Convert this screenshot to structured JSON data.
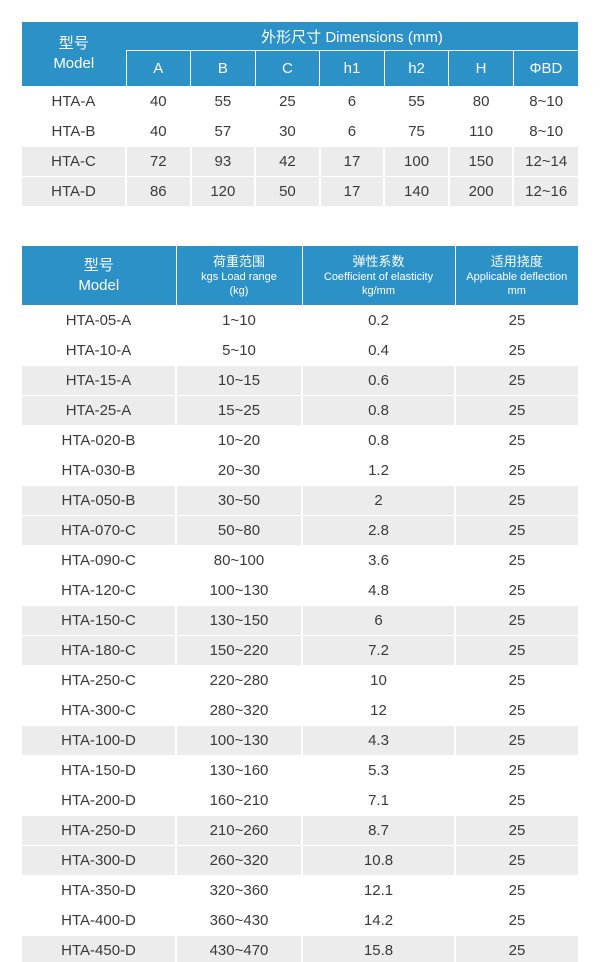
{
  "colors": {
    "header_bg": "#2C91C6",
    "header_text": "#FFFFFF",
    "stripe_bg": "#ECECED",
    "body_text": "#3A3A3A",
    "page_bg": "#FFFFFF"
  },
  "dimensions_table": {
    "model_header": {
      "zh": "型号",
      "en": "Model"
    },
    "group_header": "外形尺寸 Dimensions (mm)",
    "columns": [
      "A",
      "B",
      "C",
      "h1",
      "h2",
      "H",
      "ΦBD"
    ],
    "rows": [
      {
        "model": "HTA-A",
        "values": [
          "40",
          "55",
          "25",
          "6",
          "55",
          "80",
          "8~10"
        ],
        "shaded": false
      },
      {
        "model": "HTA-B",
        "values": [
          "40",
          "57",
          "30",
          "6",
          "75",
          "110",
          "8~10"
        ],
        "shaded": false
      },
      {
        "model": "HTA-C",
        "values": [
          "72",
          "93",
          "42",
          "17",
          "100",
          "150",
          "12~14"
        ],
        "shaded": true
      },
      {
        "model": "HTA-D",
        "values": [
          "86",
          "120",
          "50",
          "17",
          "140",
          "200",
          "12~16"
        ],
        "shaded": true
      }
    ]
  },
  "spec_table": {
    "headers": [
      {
        "lines": [
          "型号",
          "Model"
        ],
        "model_style": true
      },
      {
        "lines": [
          "荷重范围",
          "kgs Load range",
          "(kg)"
        ],
        "model_style": false
      },
      {
        "lines": [
          "弹性系数",
          "Coefficient of elasticity",
          "kg/mm"
        ],
        "model_style": false
      },
      {
        "lines": [
          "适用挠度",
          "Applicable deflection",
          "mm"
        ],
        "model_style": false
      }
    ],
    "rows": [
      {
        "model": "HTA-05-A",
        "load_range": "1~10",
        "coefficient": "0.2",
        "deflection": "25",
        "shaded": false
      },
      {
        "model": "HTA-10-A",
        "load_range": "5~10",
        "coefficient": "0.4",
        "deflection": "25",
        "shaded": false
      },
      {
        "model": "HTA-15-A",
        "load_range": "10~15",
        "coefficient": "0.6",
        "deflection": "25",
        "shaded": true
      },
      {
        "model": "HTA-25-A",
        "load_range": "15~25",
        "coefficient": "0.8",
        "deflection": "25",
        "shaded": true
      },
      {
        "model": "HTA-020-B",
        "load_range": "10~20",
        "coefficient": "0.8",
        "deflection": "25",
        "shaded": false
      },
      {
        "model": "HTA-030-B",
        "load_range": "20~30",
        "coefficient": "1.2",
        "deflection": "25",
        "shaded": false
      },
      {
        "model": "HTA-050-B",
        "load_range": "30~50",
        "coefficient": "2",
        "deflection": "25",
        "shaded": true
      },
      {
        "model": "HTA-070-C",
        "load_range": "50~80",
        "coefficient": "2.8",
        "deflection": "25",
        "shaded": true
      },
      {
        "model": "HTA-090-C",
        "load_range": "80~100",
        "coefficient": "3.6",
        "deflection": "25",
        "shaded": false
      },
      {
        "model": "HTA-120-C",
        "load_range": "100~130",
        "coefficient": "4.8",
        "deflection": "25",
        "shaded": false
      },
      {
        "model": "HTA-150-C",
        "load_range": "130~150",
        "coefficient": "6",
        "deflection": "25",
        "shaded": true
      },
      {
        "model": "HTA-180-C",
        "load_range": "150~220",
        "coefficient": "7.2",
        "deflection": "25",
        "shaded": true
      },
      {
        "model": "HTA-250-C",
        "load_range": "220~280",
        "coefficient": "10",
        "deflection": "25",
        "shaded": false
      },
      {
        "model": "HTA-300-C",
        "load_range": "280~320",
        "coefficient": "12",
        "deflection": "25",
        "shaded": false
      },
      {
        "model": "HTA-100-D",
        "load_range": "100~130",
        "coefficient": "4.3",
        "deflection": "25",
        "shaded": true
      },
      {
        "model": "HTA-150-D",
        "load_range": "130~160",
        "coefficient": "5.3",
        "deflection": "25",
        "shaded": false
      },
      {
        "model": "HTA-200-D",
        "load_range": "160~210",
        "coefficient": "7.1",
        "deflection": "25",
        "shaded": false
      },
      {
        "model": "HTA-250-D",
        "load_range": "210~260",
        "coefficient": "8.7",
        "deflection": "25",
        "shaded": true
      },
      {
        "model": "HTA-300-D",
        "load_range": "260~320",
        "coefficient": "10.8",
        "deflection": "25",
        "shaded": true
      },
      {
        "model": "HTA-350-D",
        "load_range": "320~360",
        "coefficient": "12.1",
        "deflection": "25",
        "shaded": false
      },
      {
        "model": "HTA-400-D",
        "load_range": "360~430",
        "coefficient": "14.2",
        "deflection": "25",
        "shaded": false
      },
      {
        "model": "HTA-450-D",
        "load_range": "430~470",
        "coefficient": "15.8",
        "deflection": "25",
        "shaded": true
      }
    ]
  }
}
